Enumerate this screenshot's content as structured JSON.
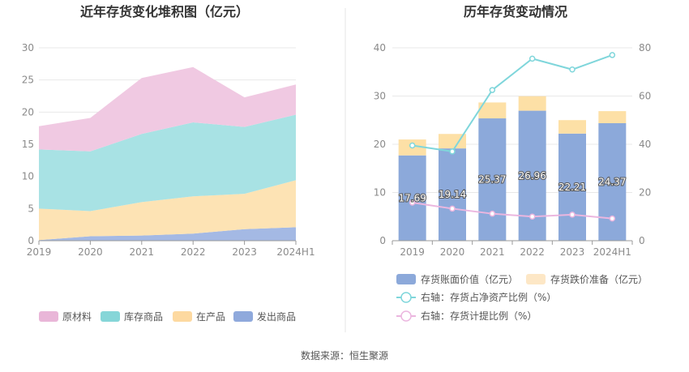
{
  "source": "数据来源：恒生聚源",
  "chart_data": [
    {
      "type": "area",
      "stacked": true,
      "title": "近年存货变化堆积图（亿元）",
      "categories": [
        "2019",
        "2020",
        "2021",
        "2022",
        "2023",
        "2024H1"
      ],
      "ylim": [
        0,
        30
      ],
      "yticks": [
        0,
        5,
        10,
        15,
        20,
        25,
        30
      ],
      "grid": true,
      "legend_position": "bottom",
      "series": [
        {
          "name": "发出商品",
          "color": "#a4b9e4",
          "values": [
            0.1,
            0.7,
            0.8,
            1.1,
            1.8,
            2.1
          ]
        },
        {
          "name": "在产品",
          "color": "#fde3b4",
          "values": [
            4.9,
            3.9,
            5.2,
            5.8,
            5.5,
            7.3
          ]
        },
        {
          "name": "库存商品",
          "color": "#a8e2e4",
          "values": [
            9.2,
            9.3,
            10.6,
            11.5,
            10.4,
            10.2
          ]
        },
        {
          "name": "原材料",
          "color": "#f0c9e2",
          "values": [
            3.6,
            5.2,
            8.7,
            8.6,
            4.6,
            4.7
          ]
        }
      ],
      "legend_order": [
        "原材料",
        "库存商品",
        "在产品",
        "发出商品"
      ],
      "legend_colors": {
        "原材料": "#e9b6d8",
        "库存商品": "#86d6d8",
        "在产品": "#fdd9a0",
        "发出商品": "#8fa9dc"
      }
    },
    {
      "type": "bar",
      "stacked": true,
      "title": "历年存货变动情况",
      "categories": [
        "2019",
        "2020",
        "2021",
        "2022",
        "2023",
        "2024H1"
      ],
      "ylim_left": [
        0,
        40
      ],
      "yticks_left": [
        0,
        10,
        20,
        30,
        40
      ],
      "ylim_right": [
        0,
        80
      ],
      "yticks_right": [
        0,
        20,
        40,
        60,
        80
      ],
      "grid": true,
      "legend_position": "bottom",
      "series": [
        {
          "name": "存货账面价值（亿元）",
          "axis": "left",
          "kind": "bar",
          "color": "#8ca9da",
          "values": [
            17.69,
            19.14,
            25.37,
            26.96,
            22.21,
            24.37
          ],
          "labels": [
            "17.69",
            "19.14",
            "25.37",
            "26.96",
            "22.21",
            "24.37"
          ]
        },
        {
          "name": "存货跌价准备（亿元）",
          "axis": "left",
          "kind": "bar",
          "color": "#fde0a6",
          "legend_color": "#fde7c6",
          "values": [
            3.3,
            3.0,
            3.3,
            3.0,
            2.8,
            2.5
          ]
        },
        {
          "name": "右轴：存货占净资产比例（%）",
          "axis": "right",
          "kind": "line",
          "color": "#7fd6db",
          "values": [
            39.5,
            37.0,
            62.5,
            75.5,
            71.0,
            77.0
          ]
        },
        {
          "name": "右轴：存货计提比例（%）",
          "axis": "right",
          "kind": "line",
          "color": "#ebb6df",
          "values": [
            15.8,
            13.3,
            11.2,
            10.0,
            10.8,
            9.2
          ]
        }
      ]
    }
  ]
}
